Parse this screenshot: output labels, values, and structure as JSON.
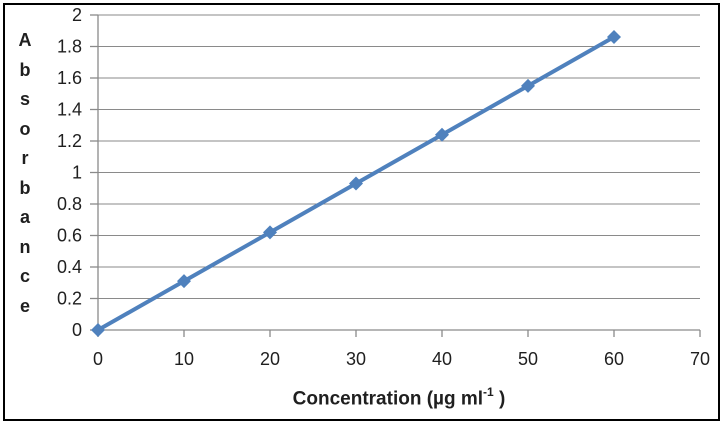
{
  "chart_data": {
    "type": "line",
    "title": "",
    "x": [
      0,
      10,
      20,
      30,
      40,
      50,
      60
    ],
    "y": [
      0,
      0.31,
      0.62,
      0.93,
      1.24,
      1.55,
      1.86
    ],
    "xlabel": "Concentration  (µg ml⁻¹ )",
    "xlabel_parts": {
      "main": "Concentration  (µg ml",
      "sup": "-1",
      "end": " )"
    },
    "ylabel": "Absorbance",
    "xlim": [
      0,
      70
    ],
    "ylim": [
      0,
      2
    ],
    "xticks": [
      "0",
      "10",
      "20",
      "30",
      "40",
      "50",
      "60",
      "70"
    ],
    "yticks": [
      "0",
      "0.2",
      "0.4",
      "0.6",
      "0.8",
      "1",
      "1.2",
      "1.4",
      "1.6",
      "1.8",
      "2"
    ],
    "grid": true,
    "legend": false,
    "marker": "diamond",
    "colors": {
      "series": "#4F81BD",
      "gridline": "#8a8a8a",
      "axis": "#8a8a8a",
      "text": "#1f1f1f",
      "background": "#ffffff",
      "border": "#000000"
    }
  }
}
